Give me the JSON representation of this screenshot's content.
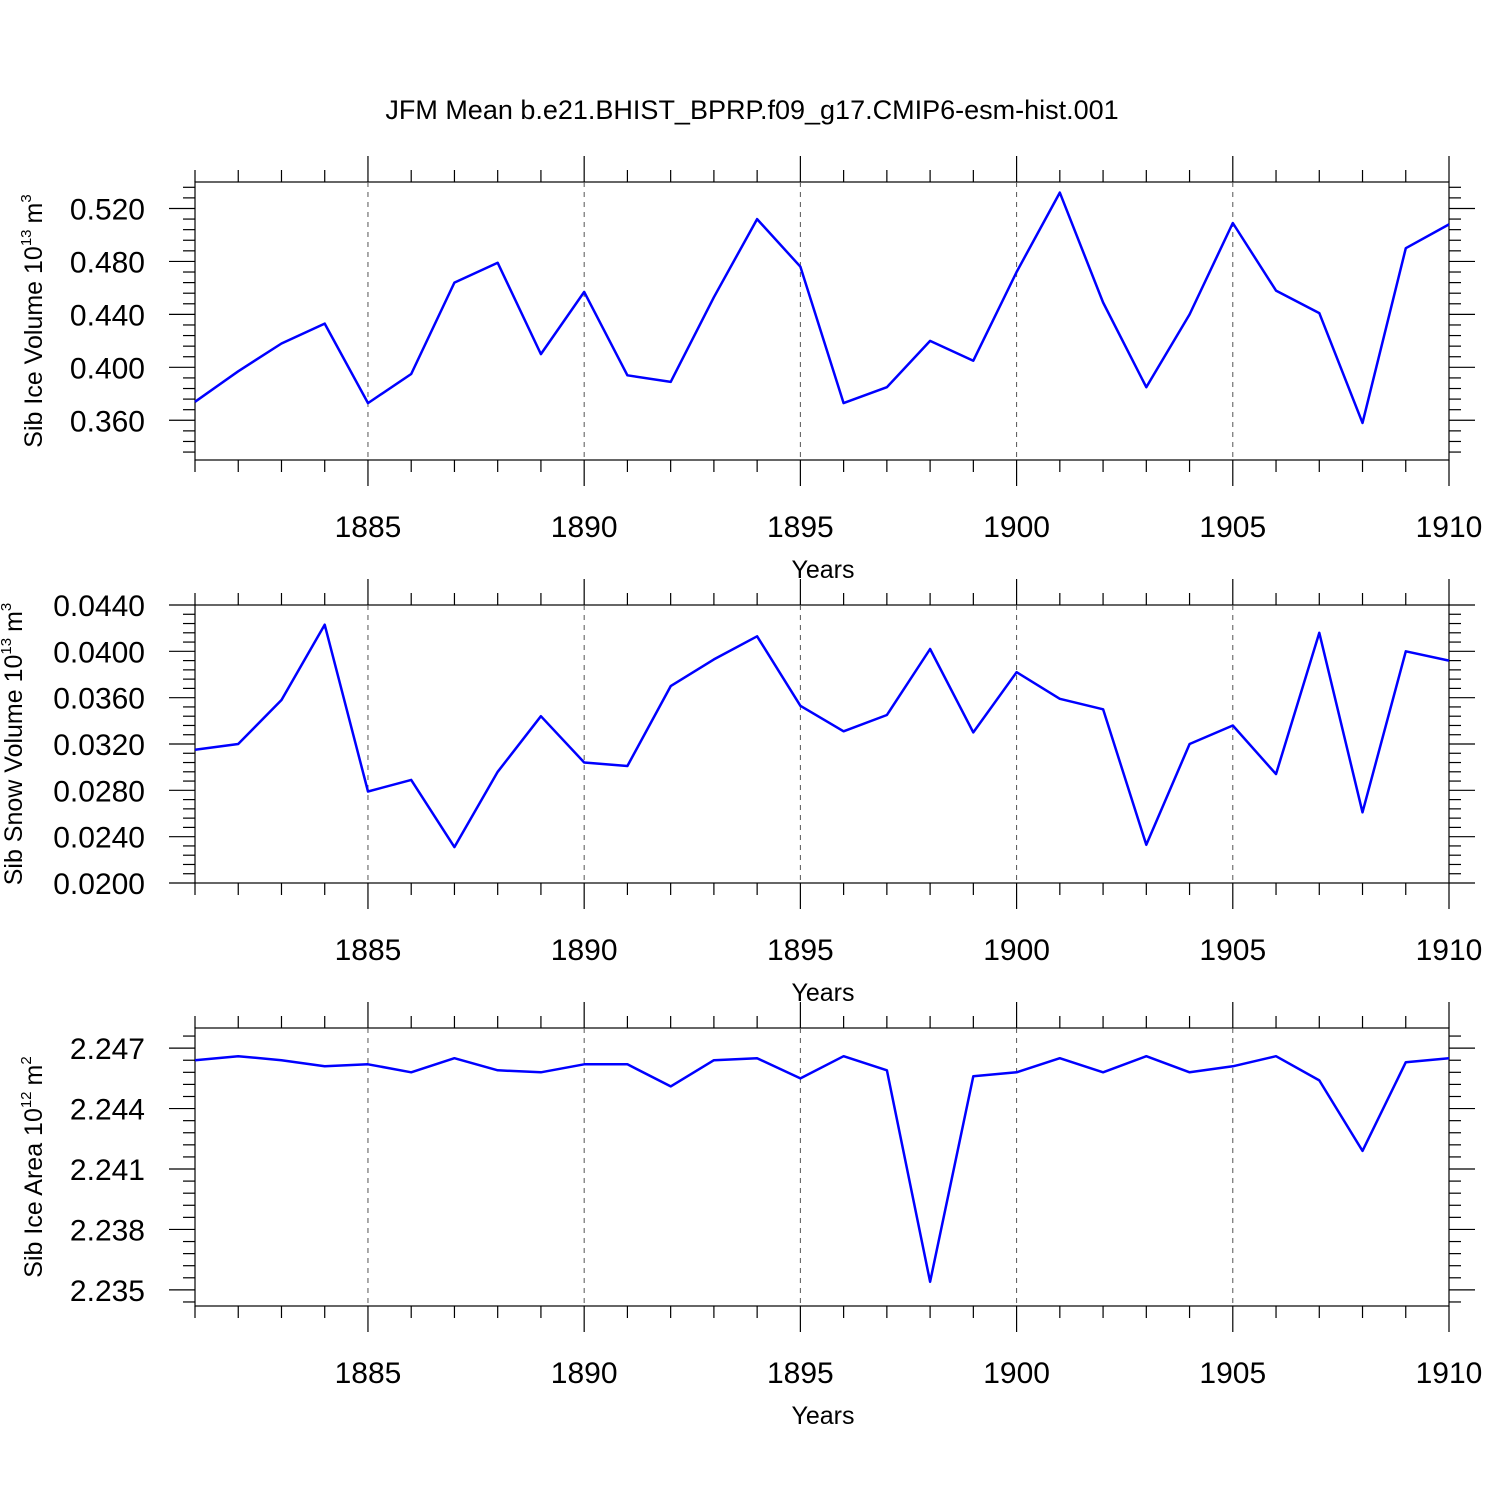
{
  "title": "JFM Mean b.e21.BHIST_BPRP.f09_g17.CMIP6-esm-hist.001",
  "chart_data": [
    {
      "type": "line",
      "ylabel": "Sib Ice Volume 10",
      "ylabel_exp": "13",
      "ylabel_unit": "m",
      "ylabel_unit_exp": "3",
      "xlabel": "Years",
      "xlim": [
        1881,
        1910
      ],
      "ylim": [
        0.33,
        0.54
      ],
      "yticks": [
        "0.360",
        "0.400",
        "0.440",
        "0.480",
        "0.520"
      ],
      "xticks": [
        "1885",
        "1890",
        "1895",
        "1900",
        "1905",
        "1910"
      ],
      "series": [
        {
          "name": "Sib Ice Volume",
          "color": "#0000ff",
          "x": [
            1881,
            1882,
            1883,
            1884,
            1885,
            1886,
            1887,
            1888,
            1889,
            1890,
            1891,
            1892,
            1893,
            1894,
            1895,
            1896,
            1897,
            1898,
            1899,
            1900,
            1901,
            1902,
            1903,
            1904,
            1905,
            1906,
            1907,
            1908,
            1909,
            1910
          ],
          "values": [
            0.374,
            0.397,
            0.418,
            0.433,
            0.373,
            0.395,
            0.464,
            0.479,
            0.41,
            0.457,
            0.394,
            0.389,
            0.453,
            0.512,
            0.476,
            0.373,
            0.385,
            0.42,
            0.405,
            0.472,
            0.532,
            0.449,
            0.385,
            0.44,
            0.509,
            0.458,
            0.441,
            0.358,
            0.49,
            0.508
          ]
        }
      ]
    },
    {
      "type": "line",
      "ylabel": "Sib Snow Volume 10",
      "ylabel_exp": "13",
      "ylabel_unit": "m",
      "ylabel_unit_exp": "3",
      "xlabel": "Years",
      "xlim": [
        1881,
        1910
      ],
      "ylim": [
        0.02,
        0.044
      ],
      "yticks": [
        "0.0200",
        "0.0240",
        "0.0280",
        "0.0320",
        "0.0360",
        "0.0400",
        "0.0440"
      ],
      "xticks": [
        "1885",
        "1890",
        "1895",
        "1900",
        "1905",
        "1910"
      ],
      "series": [
        {
          "name": "Sib Snow Volume",
          "color": "#0000ff",
          "x": [
            1881,
            1882,
            1883,
            1884,
            1885,
            1886,
            1887,
            1888,
            1889,
            1890,
            1891,
            1892,
            1893,
            1894,
            1895,
            1896,
            1897,
            1898,
            1899,
            1900,
            1901,
            1902,
            1903,
            1904,
            1905,
            1906,
            1907,
            1908,
            1909,
            1910
          ],
          "values": [
            0.0315,
            0.032,
            0.0358,
            0.0423,
            0.0279,
            0.0289,
            0.0231,
            0.0296,
            0.0344,
            0.0304,
            0.0301,
            0.037,
            0.0393,
            0.0413,
            0.0353,
            0.0331,
            0.0345,
            0.0402,
            0.033,
            0.0382,
            0.0359,
            0.035,
            0.0233,
            0.032,
            0.0336,
            0.0294,
            0.0416,
            0.0261,
            0.04,
            0.0392
          ]
        }
      ]
    },
    {
      "type": "line",
      "ylabel": "Sib Ice Area 10",
      "ylabel_exp": "12",
      "ylabel_unit": "m",
      "ylabel_unit_exp": "2",
      "xlabel": "Years",
      "xlim": [
        1881,
        1910
      ],
      "ylim": [
        2.2342,
        2.248
      ],
      "yticks": [
        "2.235",
        "2.238",
        "2.241",
        "2.244",
        "2.247"
      ],
      "xticks": [
        "1885",
        "1890",
        "1895",
        "1900",
        "1905",
        "1910"
      ],
      "series": [
        {
          "name": "Sib Ice Area",
          "color": "#0000ff",
          "x": [
            1881,
            1882,
            1883,
            1884,
            1885,
            1886,
            1887,
            1888,
            1889,
            1890,
            1891,
            1892,
            1893,
            1894,
            1895,
            1896,
            1897,
            1898,
            1899,
            1900,
            1901,
            1902,
            1903,
            1904,
            1905,
            1906,
            1907,
            1908,
            1909,
            1910
          ],
          "values": [
            2.2464,
            2.2466,
            2.2464,
            2.2461,
            2.2462,
            2.2458,
            2.2465,
            2.2459,
            2.2458,
            2.2462,
            2.2462,
            2.2451,
            2.2464,
            2.2465,
            2.2455,
            2.2466,
            2.2459,
            2.2354,
            2.2456,
            2.2458,
            2.2465,
            2.2458,
            2.2466,
            2.2458,
            2.2461,
            2.2466,
            2.2454,
            2.2419,
            2.2463,
            2.2465
          ]
        }
      ]
    }
  ]
}
